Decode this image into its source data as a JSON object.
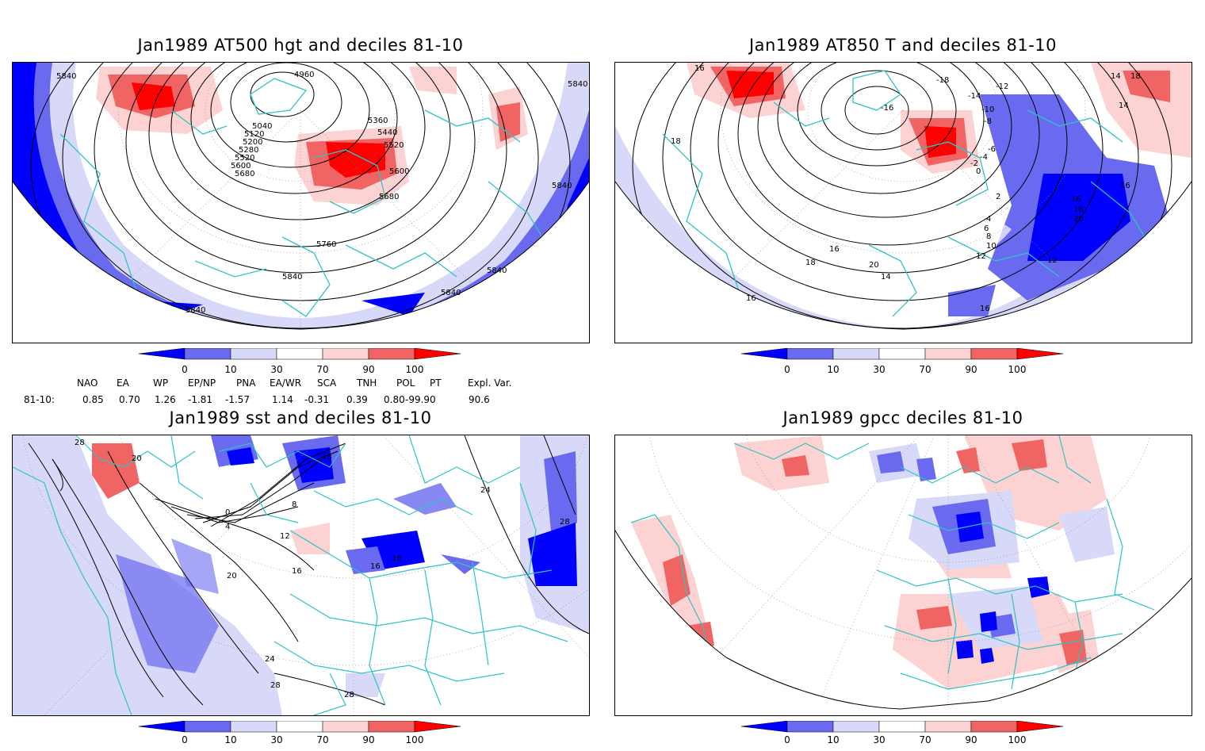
{
  "panels": {
    "tl": {
      "title": "Jan1989 AT500 hgt and deciles 81-10",
      "contour_labels": [
        "4960",
        "5040",
        "5120",
        "5200",
        "5280",
        "5360",
        "5440",
        "5520",
        "5600",
        "5680",
        "5760",
        "5840",
        "5840",
        "5840",
        "5840",
        "5840",
        "5840",
        "5840",
        "5520",
        "5600",
        "5680"
      ]
    },
    "tr": {
      "title": "Jan1989 AT850 T and deciles 81-10",
      "contour_labels": [
        "-18",
        "-16",
        "-14",
        "-12",
        "-10",
        "-8",
        "-6",
        "-4",
        "-2",
        "0",
        "2",
        "4",
        "6",
        "8",
        "10",
        "12",
        "14",
        "16",
        "18",
        "20",
        "16",
        "16",
        "18",
        "20",
        "14",
        "12",
        "14",
        "16",
        "18",
        "16",
        "16",
        "18"
      ]
    },
    "bl": {
      "title": "Jan1989 sst and deciles 81-10",
      "contour_labels": [
        "28",
        "20",
        "0",
        "4",
        "8",
        "12",
        "16",
        "20",
        "24",
        "28",
        "28",
        "24",
        "28",
        "16",
        "16",
        "18"
      ]
    },
    "br": {
      "title": "Jan1989 gpcc deciles 81-10"
    }
  },
  "colorbar": {
    "ticks": [
      "0",
      "10",
      "30",
      "70",
      "90",
      "100"
    ],
    "colors": [
      "#0000ff",
      "#6a6af0",
      "#d8d8f8",
      "#ffffff",
      "#fcd2d2",
      "#f06464",
      "#ff0000"
    ]
  },
  "indices": {
    "headers": [
      "NAO",
      "EA",
      "WP",
      "EP/NP",
      "PNA",
      "EA/WR",
      "SCA",
      "TNH",
      "POL",
      "PT",
      "Expl. Var."
    ],
    "row_label": "81-10:",
    "values": [
      "0.85",
      "0.70",
      "1.26",
      "-1.81",
      "-1.57",
      "1.14",
      "-0.31",
      "0.39",
      "0.80",
      "-99.90",
      "90.6"
    ]
  },
  "colors": {
    "coast": "#2ec4c4",
    "frame": "#000000"
  }
}
